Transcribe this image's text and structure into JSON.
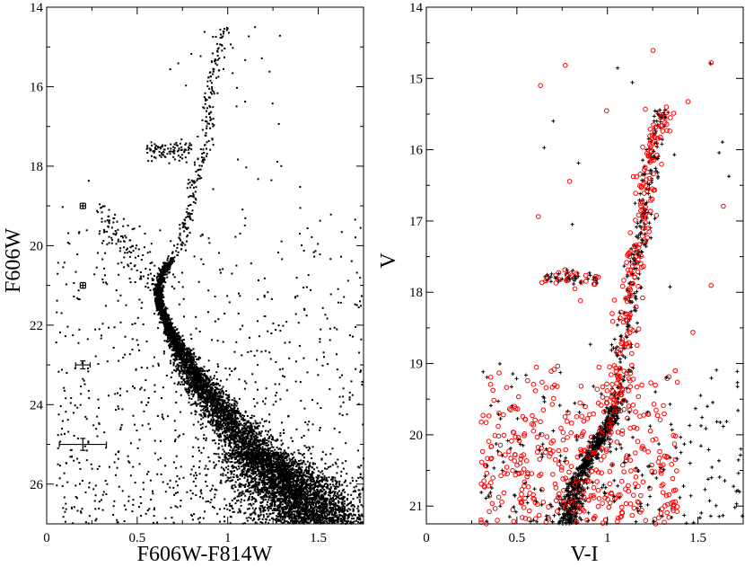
{
  "figure": {
    "panels": 2
  },
  "chart_data": [
    {
      "type": "scatter",
      "title": "",
      "xlabel": "F606W-F814W",
      "ylabel": "F606W",
      "xlim": [
        0,
        1.75
      ],
      "ylim": [
        27,
        14
      ],
      "y_inverted": true,
      "grid": false,
      "x_ticks": [
        "0",
        "0.5",
        "1",
        "1.5"
      ],
      "y_ticks": [
        "14",
        "16",
        "18",
        "20",
        "22",
        "24",
        "26"
      ],
      "colors": {
        "points": "#000000",
        "errorbars": "#000000"
      },
      "ridge_line": [
        [
          1.5,
          27.0
        ],
        [
          1.4,
          26.4
        ],
        [
          1.25,
          25.6
        ],
        [
          1.1,
          24.9
        ],
        [
          0.97,
          24.2
        ],
        [
          0.86,
          23.6
        ],
        [
          0.77,
          22.9
        ],
        [
          0.7,
          22.3
        ],
        [
          0.65,
          21.8
        ],
        [
          0.62,
          21.4
        ],
        [
          0.62,
          21.0
        ],
        [
          0.64,
          20.7
        ],
        [
          0.68,
          20.4
        ],
        [
          0.74,
          20.1
        ],
        [
          0.77,
          19.6
        ],
        [
          0.8,
          19.0
        ],
        [
          0.83,
          18.3
        ],
        [
          0.86,
          17.6
        ],
        [
          0.89,
          17.0
        ],
        [
          0.91,
          16.0
        ],
        [
          0.95,
          15.0
        ],
        [
          1.0,
          14.3
        ]
      ],
      "horizontal_branch": {
        "x_range": [
          0.55,
          0.8
        ],
        "y": 17.6
      },
      "blue_stragglers": {
        "x_range": [
          0.3,
          0.6
        ],
        "y_range": [
          19.2,
          21.0
        ]
      },
      "field_points": {
        "x_range": [
          0.05,
          1.75
        ],
        "y_range": [
          19.0,
          27.0
        ]
      },
      "error_bars": [
        {
          "x": 0.2,
          "y": 19.0,
          "xerr": 0.01,
          "yerr": 0.05
        },
        {
          "x": 0.2,
          "y": 21.0,
          "xerr": 0.01,
          "yerr": 0.07
        },
        {
          "x": 0.2,
          "y": 23.0,
          "xerr": 0.04,
          "yerr": 0.1
        },
        {
          "x": 0.2,
          "y": 25.0,
          "xerr": 0.13,
          "yerr": 0.15
        }
      ]
    },
    {
      "type": "scatter",
      "title": "",
      "xlabel": "V-I",
      "ylabel": "V",
      "xlim": [
        0,
        1.75
      ],
      "ylim": [
        21.25,
        14
      ],
      "y_inverted": true,
      "grid": false,
      "x_ticks": [
        "0",
        "0.5",
        "1",
        "1.5"
      ],
      "y_ticks": [
        "14",
        "15",
        "16",
        "17",
        "18",
        "19",
        "20",
        "21"
      ],
      "series": [
        {
          "marker": "plus",
          "color": "#000000"
        },
        {
          "marker": "open-circle",
          "color": "#ff0000"
        }
      ],
      "ridge_line": [
        [
          0.79,
          21.25
        ],
        [
          0.8,
          21.0
        ],
        [
          0.83,
          20.7
        ],
        [
          0.88,
          20.4
        ],
        [
          0.95,
          20.1
        ],
        [
          1.02,
          19.8
        ],
        [
          1.05,
          19.4
        ],
        [
          1.07,
          19.0
        ],
        [
          1.1,
          18.5
        ],
        [
          1.13,
          18.0
        ],
        [
          1.16,
          17.5
        ],
        [
          1.19,
          17.0
        ],
        [
          1.22,
          16.5
        ],
        [
          1.26,
          16.0
        ],
        [
          1.3,
          15.5
        ]
      ],
      "horizontal_branch": {
        "x_range": [
          0.65,
          0.95
        ],
        "y": 17.8
      },
      "scatter_region": {
        "x_range": [
          0.3,
          1.75
        ],
        "y_range": [
          19.0,
          21.25
        ]
      }
    }
  ]
}
